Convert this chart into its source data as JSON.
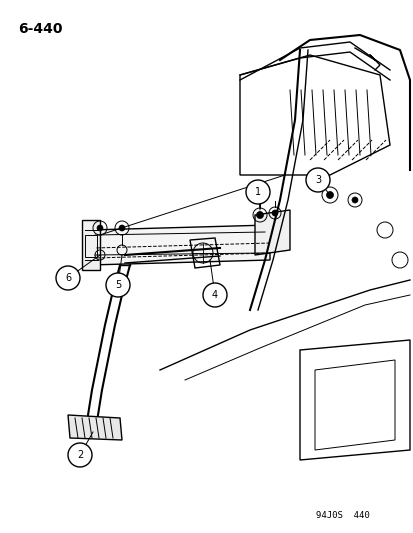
{
  "title": "6-440",
  "footer": "94J0S  440",
  "background_color": "#ffffff",
  "line_color": "#000000",
  "fig_width": 4.14,
  "fig_height": 5.33,
  "dpi": 100
}
